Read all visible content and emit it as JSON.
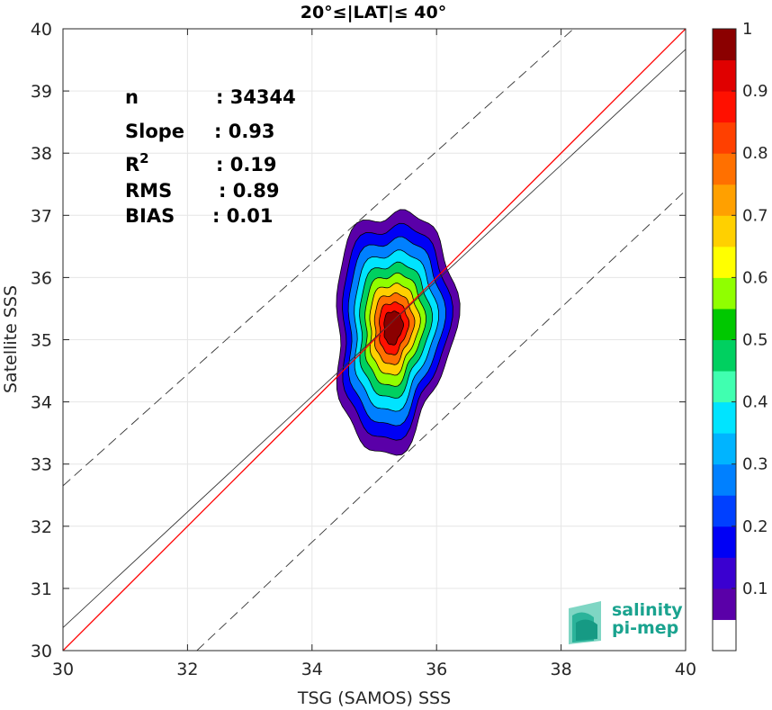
{
  "chart_data": {
    "type": "heatmap",
    "title": "20°≤|LAT|≤ 40°",
    "xlabel": "TSG (SAMOS) SSS",
    "ylabel": "Satellite SSS",
    "xlim": [
      30,
      40
    ],
    "ylim": [
      30,
      40
    ],
    "xticks": [
      "30",
      "32",
      "34",
      "36",
      "38",
      "40"
    ],
    "yticks": [
      "30",
      "31",
      "32",
      "33",
      "34",
      "35",
      "36",
      "37",
      "38",
      "39",
      "40"
    ],
    "grid": true,
    "stats": [
      {
        "label": "n",
        "value": ": 34344"
      },
      {
        "label": "Slope",
        "value": ": 0.93"
      },
      {
        "label": "R",
        "sup": "2",
        "value": ": 0.19"
      },
      {
        "label": "RMS",
        "value": ": 0.89"
      },
      {
        "label": "BIAS",
        "value": ": 0.01"
      }
    ],
    "lines": [
      {
        "name": "identity",
        "color": "#ff0000",
        "points": [
          [
            30,
            30
          ],
          [
            40,
            40
          ]
        ]
      },
      {
        "name": "fit",
        "color": "#333333",
        "points": [
          [
            30,
            30.37
          ],
          [
            40,
            39.67
          ]
        ]
      },
      {
        "name": "upper-bound",
        "color": "#333333",
        "dashed": true,
        "points": [
          [
            30,
            32.65
          ],
          [
            38.2,
            40
          ]
        ]
      },
      {
        "name": "lower-bound",
        "color": "#333333",
        "dashed": true,
        "points": [
          [
            32.15,
            30
          ],
          [
            40,
            37.4
          ]
        ]
      }
    ],
    "density": {
      "center": [
        35.3,
        35.2
      ],
      "levels": [
        0.05,
        0.15,
        0.25,
        0.35,
        0.45,
        0.55,
        0.65,
        0.75,
        0.85,
        0.95
      ],
      "level_semi_axes": [
        [
          0.95,
          1.95
        ],
        [
          0.85,
          1.72
        ],
        [
          0.75,
          1.5
        ],
        [
          0.65,
          1.28
        ],
        [
          0.56,
          1.08
        ],
        [
          0.47,
          0.9
        ],
        [
          0.39,
          0.73
        ],
        [
          0.31,
          0.57
        ],
        [
          0.23,
          0.42
        ],
        [
          0.15,
          0.27
        ]
      ]
    },
    "colorbar": {
      "min": 0,
      "max": 1,
      "ticks": [
        "0.1",
        "0.2",
        "0.3",
        "0.4",
        "0.5",
        "0.6",
        "0.7",
        "0.8",
        "0.9",
        "1"
      ],
      "colors": [
        "#ffffff",
        "#5a00a8",
        "#3a00d0",
        "#0000f5",
        "#0040ff",
        "#0080ff",
        "#00b4ff",
        "#00e4ff",
        "#40ffb0",
        "#00d060",
        "#00c800",
        "#90ff00",
        "#ffff00",
        "#ffd000",
        "#ffa000",
        "#ff7000",
        "#ff4000",
        "#ff1000",
        "#e00000",
        "#8b0000"
      ]
    },
    "logo": {
      "line1": "salinity",
      "line2": "pi-mep"
    }
  }
}
